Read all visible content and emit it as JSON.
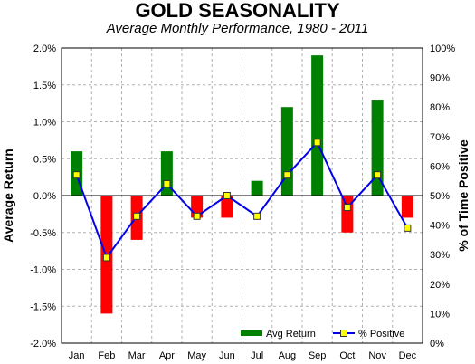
{
  "chart_data": {
    "type": "bar",
    "title": "GOLD SEASONALITY",
    "subtitle": "Average Monthly Performance, 1980 - 2011",
    "xlabel": "",
    "ylabel": "Average Return",
    "y2label": "% of Time Positive",
    "categories": [
      "Jan",
      "Feb",
      "Mar",
      "Apr",
      "May",
      "Jun",
      "Jul",
      "Aug",
      "Sep",
      "Oct",
      "Nov",
      "Dec"
    ],
    "ylim": [
      -2.0,
      2.0
    ],
    "y2lim": [
      0,
      100
    ],
    "yticks": [
      "2.0%",
      "1.5%",
      "1.0%",
      "0.5%",
      "0.0%",
      "-0.5%",
      "-1.0%",
      "-1.5%",
      "-2.0%"
    ],
    "y2ticks": [
      "100%",
      "90%",
      "80%",
      "70%",
      "60%",
      "50%",
      "40%",
      "30%",
      "20%",
      "10%",
      "0%"
    ],
    "grid": true,
    "legend_position": "bottom-right",
    "series": [
      {
        "name": "Avg Return",
        "type": "bar",
        "axis": "left",
        "values": [
          0.6,
          -1.6,
          -0.6,
          0.6,
          -0.3,
          -0.3,
          0.2,
          1.2,
          1.9,
          -0.5,
          1.3,
          -0.3
        ],
        "positive_color": "#008000",
        "negative_color": "#ff0000"
      },
      {
        "name": "% Positive",
        "type": "line",
        "axis": "right",
        "values": [
          57,
          29,
          43,
          54,
          43,
          50,
          43,
          57,
          68,
          46,
          57,
          39
        ],
        "line_color": "#0000ee",
        "marker_color": "#ffff00"
      }
    ]
  }
}
